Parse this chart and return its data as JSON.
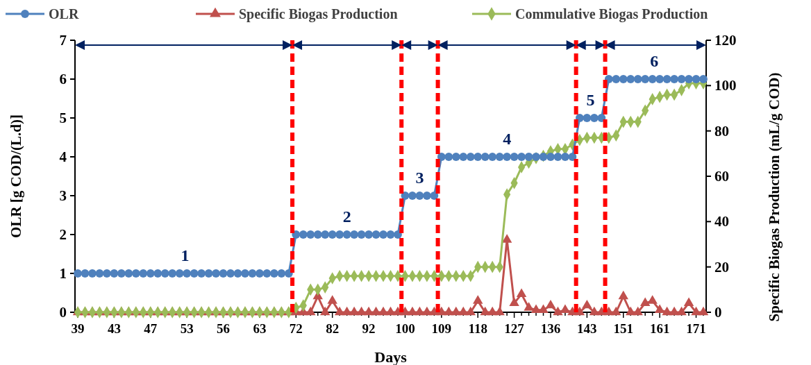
{
  "chart_data": {
    "type": "line",
    "xlabel": "Days",
    "ylabel": "OLR [g COD/(L.d)]",
    "y2label": "Specific Biogas Production (mL/g COD)",
    "categories": [
      "39",
      null,
      null,
      null,
      null,
      "43",
      null,
      null,
      null,
      null,
      "47",
      null,
      null,
      null,
      null,
      "53",
      null,
      null,
      null,
      null,
      "56",
      null,
      null,
      null,
      null,
      "63",
      null,
      null,
      null,
      null,
      "72",
      null,
      null,
      null,
      null,
      "82",
      null,
      null,
      null,
      null,
      "92",
      null,
      null,
      null,
      null,
      "100",
      null,
      null,
      null,
      null,
      "109",
      null,
      null,
      null,
      null,
      "118",
      null,
      null,
      null,
      null,
      "127",
      null,
      null,
      null,
      null,
      "136",
      null,
      null,
      null,
      null,
      "143",
      null,
      null,
      null,
      null,
      "151",
      null,
      null,
      null,
      null,
      "161",
      null,
      null,
      null,
      null,
      "171",
      null
    ],
    "series": [
      {
        "name": "OLR",
        "color": "#4f81bd",
        "marker": "circle",
        "values": [
          1,
          1,
          1,
          1,
          1,
          1,
          1,
          1,
          1,
          1,
          1,
          1,
          1,
          1,
          1,
          1,
          1,
          1,
          1,
          1,
          1,
          1,
          1,
          1,
          1,
          1,
          1,
          1,
          1,
          1,
          2,
          2,
          2,
          2,
          2,
          2,
          2,
          2,
          2,
          2,
          2,
          2,
          2,
          2,
          2,
          3,
          3,
          3,
          3,
          3,
          4,
          4,
          4,
          4,
          4,
          4,
          4,
          4,
          4,
          4,
          4,
          4,
          4,
          4,
          4,
          4,
          4,
          4,
          4,
          5,
          5,
          5,
          5,
          6,
          6,
          6,
          6,
          6,
          6,
          6,
          6,
          6,
          6,
          6,
          6,
          6,
          6
        ]
      },
      {
        "name": "Specific Biogas Production",
        "color": "#c0504d",
        "marker": "triangle",
        "axis": "y2",
        "values": [
          0,
          0,
          0,
          0,
          0,
          0,
          0,
          0,
          0,
          0,
          0,
          0,
          0,
          0,
          0,
          0,
          0,
          0,
          0,
          0,
          0,
          0,
          0,
          0,
          0,
          0,
          0,
          0,
          0,
          0,
          0,
          0,
          0,
          7,
          0,
          5,
          0,
          0,
          0,
          0,
          0,
          0,
          0,
          0,
          0,
          0,
          0,
          0,
          0,
          0,
          0,
          0,
          0,
          0,
          0,
          5,
          0,
          0,
          0,
          32,
          4,
          8,
          2,
          1,
          1,
          3,
          0,
          1,
          0,
          0,
          3,
          0,
          0,
          0,
          0,
          7,
          0,
          0,
          4,
          5,
          1,
          0,
          0,
          0,
          4,
          0,
          0
        ]
      },
      {
        "name": "Commulative Biogas Production",
        "color": "#9bbb59",
        "marker": "diamond",
        "axis": "y2",
        "values": [
          0,
          0,
          0,
          0,
          0,
          0,
          0,
          0,
          0,
          0,
          0,
          0,
          0,
          0,
          0,
          0,
          0,
          0,
          0,
          0,
          0,
          0,
          0,
          0,
          0,
          0,
          0,
          0,
          0,
          0,
          2,
          3,
          10,
          10,
          11,
          15,
          16,
          16,
          16,
          16,
          16,
          16,
          16,
          16,
          16,
          16,
          16,
          16,
          16,
          16,
          16,
          16,
          16,
          16,
          16,
          20,
          20,
          20,
          20,
          52,
          57,
          64,
          66,
          68,
          69,
          71,
          72,
          72,
          74,
          76,
          77,
          77,
          77,
          77,
          78,
          84,
          84,
          84,
          89,
          94,
          95,
          96,
          96,
          98,
          101,
          101,
          101
        ]
      }
    ],
    "ylim": [
      0,
      7
    ],
    "yticks": [
      0,
      1,
      2,
      3,
      4,
      5,
      6,
      7
    ],
    "y2lim": [
      0,
      120
    ],
    "y2ticks": [
      0,
      20,
      40,
      60,
      80,
      100,
      120
    ],
    "annotations": [
      "1",
      "2",
      "3",
      "4",
      "5",
      "6"
    ],
    "legend": "top",
    "grid": false,
    "line_style": "solid"
  }
}
